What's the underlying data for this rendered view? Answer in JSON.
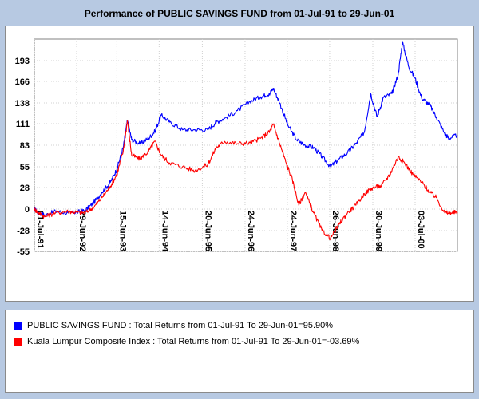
{
  "chart_data": {
    "type": "line",
    "title": "Performance of PUBLIC SAVINGS FUND from 01-Jul-91 to 29-Jun-01",
    "xlabel": "",
    "ylabel": "",
    "ylim": [
      -55,
      221
    ],
    "y_ticks": [
      -55,
      -28,
      0,
      28,
      55,
      83,
      111,
      138,
      166,
      193
    ],
    "x_tick_labels": [
      "01-Jul-91",
      "29-Jun-92",
      "15-Jun-93",
      "14-Jun-94",
      "20-Jun-95",
      "24-Jun-96",
      "24-Jun-97",
      "26-Jun-98",
      "30-Jun-99",
      "03-Jul-00"
    ],
    "x_tick_years": [
      1991.5,
      1992.5,
      1993.45,
      1994.45,
      1995.47,
      1996.48,
      1997.48,
      1998.48,
      1999.5,
      2000.5
    ],
    "xlim": [
      1991.5,
      2001.5
    ],
    "grid": true,
    "series": [
      {
        "name": "PUBLIC SAVINGS FUND",
        "color": "#0000ff",
        "points": [
          [
            1991.5,
            0
          ],
          [
            1991.6,
            -5
          ],
          [
            1991.75,
            -8
          ],
          [
            1992.0,
            -3
          ],
          [
            1992.3,
            -5
          ],
          [
            1992.5,
            -4
          ],
          [
            1992.7,
            -2
          ],
          [
            1992.9,
            8
          ],
          [
            1993.1,
            22
          ],
          [
            1993.3,
            35
          ],
          [
            1993.45,
            52
          ],
          [
            1993.6,
            80
          ],
          [
            1993.7,
            115
          ],
          [
            1993.8,
            90
          ],
          [
            1994.0,
            85
          ],
          [
            1994.2,
            92
          ],
          [
            1994.35,
            101
          ],
          [
            1994.5,
            122
          ],
          [
            1994.7,
            113
          ],
          [
            1995.0,
            103
          ],
          [
            1995.3,
            103
          ],
          [
            1995.6,
            103
          ],
          [
            1995.8,
            113
          ],
          [
            1996.0,
            118
          ],
          [
            1996.3,
            128
          ],
          [
            1996.6,
            140
          ],
          [
            1996.85,
            146
          ],
          [
            1997.05,
            150
          ],
          [
            1997.15,
            157
          ],
          [
            1997.3,
            138
          ],
          [
            1997.5,
            108
          ],
          [
            1997.7,
            90
          ],
          [
            1997.9,
            83
          ],
          [
            1998.1,
            80
          ],
          [
            1998.3,
            68
          ],
          [
            1998.5,
            55
          ],
          [
            1998.7,
            65
          ],
          [
            1998.9,
            73
          ],
          [
            1999.1,
            85
          ],
          [
            1999.3,
            100
          ],
          [
            1999.45,
            150
          ],
          [
            1999.6,
            120
          ],
          [
            1999.75,
            145
          ],
          [
            1999.95,
            150
          ],
          [
            2000.1,
            175
          ],
          [
            2000.2,
            217
          ],
          [
            2000.35,
            185
          ],
          [
            2000.5,
            170
          ],
          [
            2000.65,
            145
          ],
          [
            2000.85,
            135
          ],
          [
            2001.0,
            120
          ],
          [
            2001.2,
            98
          ],
          [
            2001.3,
            92
          ],
          [
            2001.5,
            96
          ]
        ]
      },
      {
        "name": "Kuala Lumpur Composite Index",
        "color": "#ff0000",
        "points": [
          [
            1991.5,
            0
          ],
          [
            1991.6,
            -5
          ],
          [
            1991.75,
            -10
          ],
          [
            1992.0,
            -5
          ],
          [
            1992.3,
            -3
          ],
          [
            1992.5,
            -4
          ],
          [
            1992.7,
            -5
          ],
          [
            1992.9,
            2
          ],
          [
            1993.1,
            15
          ],
          [
            1993.3,
            30
          ],
          [
            1993.45,
            45
          ],
          [
            1993.6,
            75
          ],
          [
            1993.7,
            115
          ],
          [
            1993.8,
            70
          ],
          [
            1994.0,
            65
          ],
          [
            1994.2,
            75
          ],
          [
            1994.35,
            88
          ],
          [
            1994.5,
            70
          ],
          [
            1994.7,
            60
          ],
          [
            1995.0,
            55
          ],
          [
            1995.3,
            50
          ],
          [
            1995.6,
            58
          ],
          [
            1995.8,
            80
          ],
          [
            1996.0,
            88
          ],
          [
            1996.3,
            85
          ],
          [
            1996.6,
            86
          ],
          [
            1996.85,
            92
          ],
          [
            1997.05,
            100
          ],
          [
            1997.15,
            110
          ],
          [
            1997.3,
            85
          ],
          [
            1997.45,
            60
          ],
          [
            1997.6,
            38
          ],
          [
            1997.75,
            5
          ],
          [
            1997.9,
            22
          ],
          [
            1998.1,
            -5
          ],
          [
            1998.3,
            -28
          ],
          [
            1998.5,
            -38
          ],
          [
            1998.7,
            -20
          ],
          [
            1998.9,
            -5
          ],
          [
            1999.1,
            5
          ],
          [
            1999.3,
            20
          ],
          [
            1999.5,
            28
          ],
          [
            1999.7,
            30
          ],
          [
            1999.9,
            45
          ],
          [
            2000.1,
            68
          ],
          [
            2000.25,
            60
          ],
          [
            2000.45,
            45
          ],
          [
            2000.65,
            35
          ],
          [
            2000.85,
            22
          ],
          [
            2001.0,
            15
          ],
          [
            2001.2,
            -5
          ],
          [
            2001.35,
            -5
          ],
          [
            2001.5,
            -4
          ]
        ]
      }
    ]
  },
  "legend": {
    "item1": "PUBLIC SAVINGS FUND : Total Returns from 01-Jul-91 To 29-Jun-01=95.90%",
    "item2": "Kuala Lumpur Composite Index : Total Returns from 01-Jul-91 To 29-Jun-01=-03.69%"
  }
}
